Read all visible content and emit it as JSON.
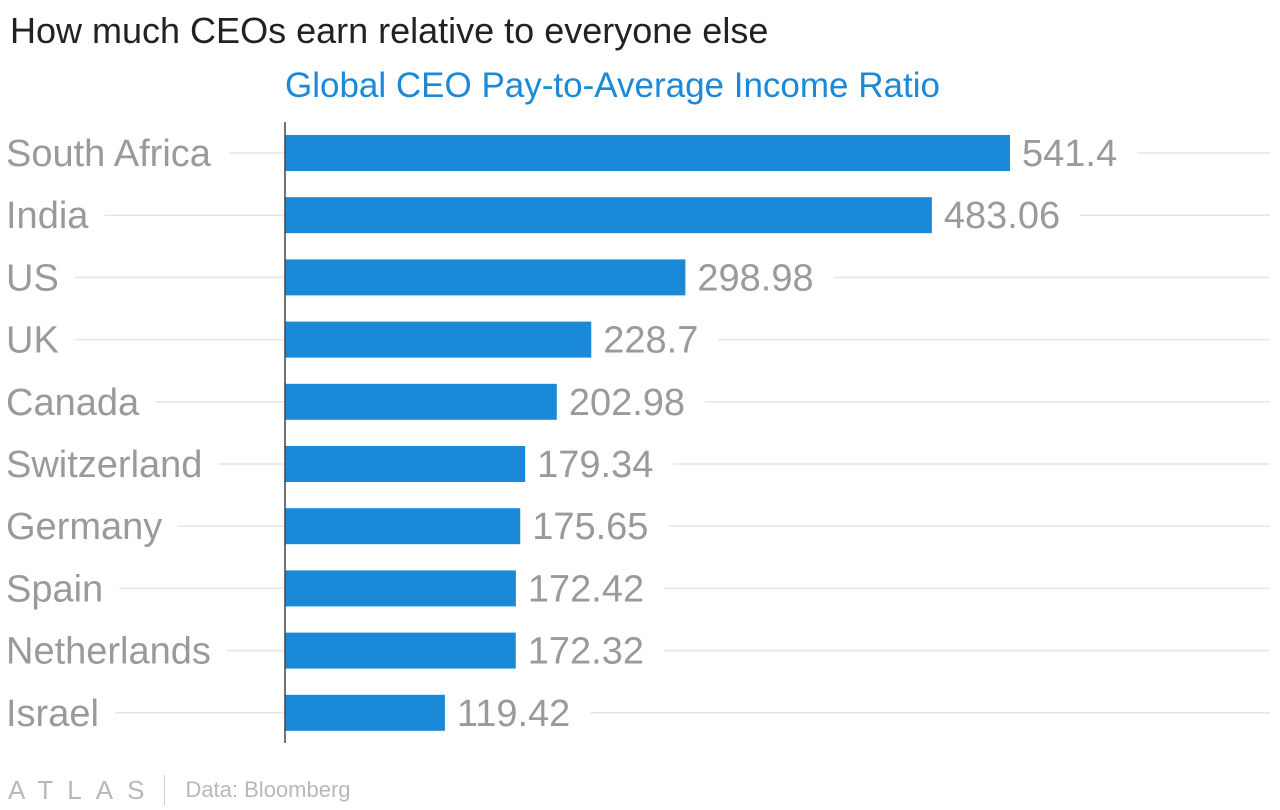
{
  "header": {
    "title": "How much CEOs earn relative to everyone else",
    "subtitle": "Global CEO Pay-to-Average Income Ratio"
  },
  "footer": {
    "logo": "ATLAS",
    "source": "Data: Bloomberg"
  },
  "colors": {
    "bar": "#1a8ad8",
    "label": "#9a9a9a",
    "grid": "#e6e6e6",
    "axis": "#444444"
  },
  "chart_data": {
    "type": "bar",
    "orientation": "horizontal",
    "title": "How much CEOs earn relative to everyone else",
    "subtitle": "Global CEO Pay-to-Average Income Ratio",
    "categories": [
      "South Africa",
      "India",
      "US",
      "UK",
      "Canada",
      "Switzerland",
      "Germany",
      "Spain",
      "Netherlands",
      "Israel"
    ],
    "values": [
      541.4,
      483.06,
      298.98,
      228.7,
      202.98,
      179.34,
      175.65,
      172.42,
      172.32,
      119.42
    ],
    "value_labels": [
      "541.4",
      "483.06",
      "298.98",
      "228.7",
      "202.98",
      "179.34",
      "175.65",
      "172.42",
      "172.32",
      "119.42"
    ],
    "xlabel": "",
    "ylabel": "",
    "xlim": [
      0,
      541.4
    ],
    "grid": true,
    "legend": "none"
  }
}
